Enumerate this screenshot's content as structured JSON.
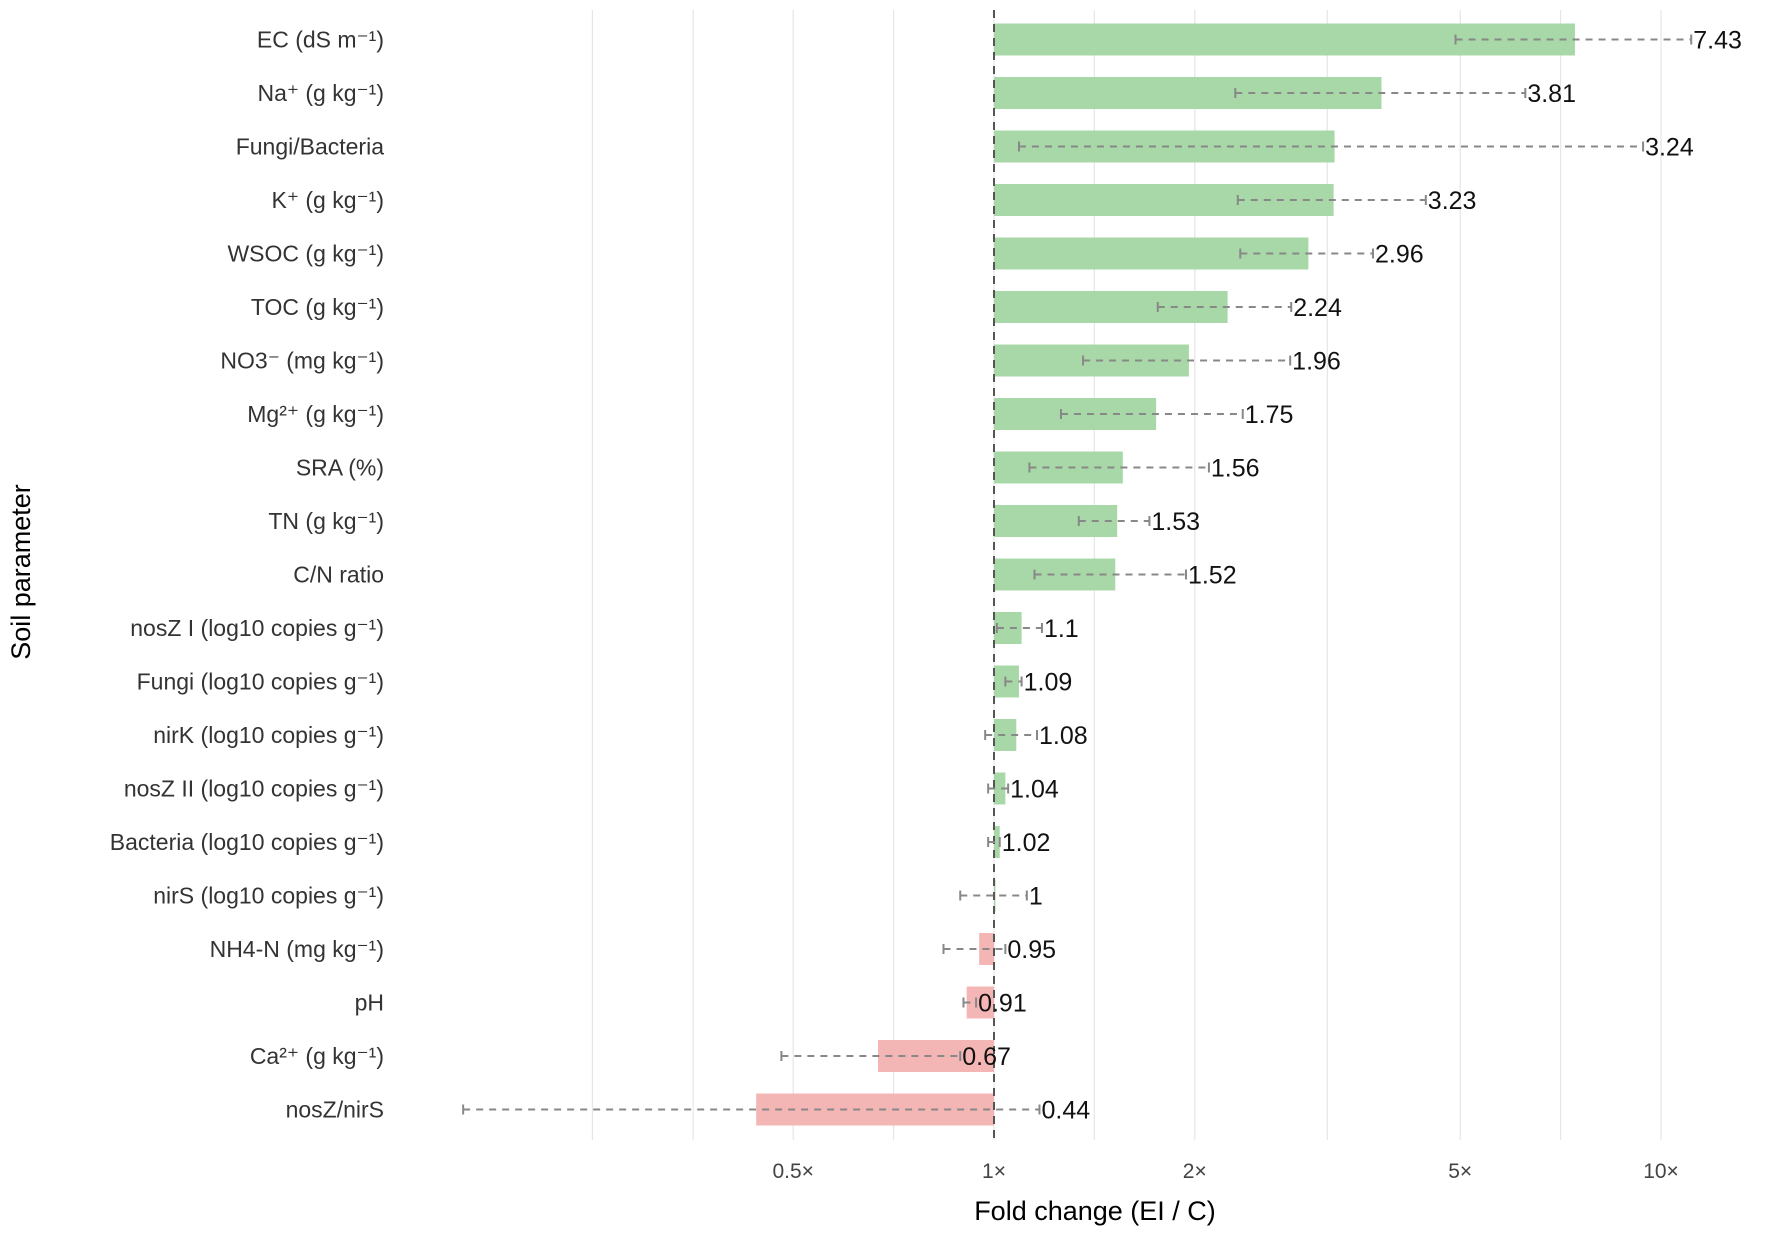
{
  "chart_data": {
    "type": "bar",
    "orientation": "horizontal",
    "xlabel": "Fold change (EI / C)",
    "ylabel": "Soil parameter",
    "x_scale": "log",
    "xlim": [
      0.132,
      14.2
    ],
    "reference_line": 1,
    "x_ticks": [
      0.5,
      1,
      2,
      5,
      10
    ],
    "x_tick_labels": [
      "0.5×",
      "1×",
      "2×",
      "5×",
      "10×"
    ],
    "grid_lines": [
      0.25,
      0.354,
      0.5,
      0.707,
      1,
      1.414,
      2,
      3.16,
      5,
      7.07,
      10
    ],
    "grid": true,
    "colors": {
      "increase": "#a8d8a8",
      "decrease": "#f4b5b5",
      "error": "#888888",
      "reference": "#555555"
    },
    "categories": [
      "EC (dS m⁻¹)",
      "Na⁺ (g kg⁻¹)",
      "Fungi/Bacteria",
      "K⁺ (g kg⁻¹)",
      "WSOC (g kg⁻¹)",
      "TOC (g kg⁻¹)",
      "NO3⁻ (mg kg⁻¹)",
      "Mg²⁺ (g kg⁻¹)",
      "SRA (%)",
      "TN (g kg⁻¹)",
      "C/N ratio",
      "nosZ I (log10 copies g⁻¹)",
      "Fungi (log10 copies g⁻¹)",
      "nirK (log10 copies g⁻¹)",
      "nosZ II (log10 copies g⁻¹)",
      "Bacteria (log10 copies g⁻¹)",
      "nirS (log10 copies g⁻¹)",
      "NH4-N (mg kg⁻¹)",
      "pH",
      "Ca²⁺ (g kg⁻¹)",
      "nosZ/nirS"
    ],
    "values": [
      7.43,
      3.81,
      3.24,
      3.23,
      2.96,
      2.24,
      1.96,
      1.75,
      1.56,
      1.53,
      1.52,
      1.1,
      1.09,
      1.08,
      1.04,
      1.02,
      1,
      0.95,
      0.91,
      0.67,
      0.44
    ],
    "value_labels": [
      "7.43",
      "3.81",
      "3.24",
      "3.23",
      "2.96",
      "2.24",
      "1.96",
      "1.75",
      "1.56",
      "1.53",
      "1.52",
      "1.1",
      "1.09",
      "1.08",
      "1.04",
      "1.02",
      "1",
      "0.95",
      "0.91",
      "0.67",
      "0.44"
    ],
    "ci_lower": [
      4.92,
      2.3,
      1.09,
      2.32,
      2.34,
      1.76,
      1.36,
      1.26,
      1.13,
      1.34,
      1.15,
      1.01,
      1.04,
      0.97,
      0.98,
      0.98,
      0.89,
      0.84,
      0.9,
      0.48,
      0.16
    ],
    "ci_upper": [
      11.1,
      6.26,
      9.4,
      4.44,
      3.7,
      2.79,
      2.78,
      2.36,
      2.1,
      1.71,
      1.94,
      1.18,
      1.1,
      1.16,
      1.05,
      1.02,
      1.12,
      1.04,
      0.94,
      0.89,
      1.17
    ]
  }
}
